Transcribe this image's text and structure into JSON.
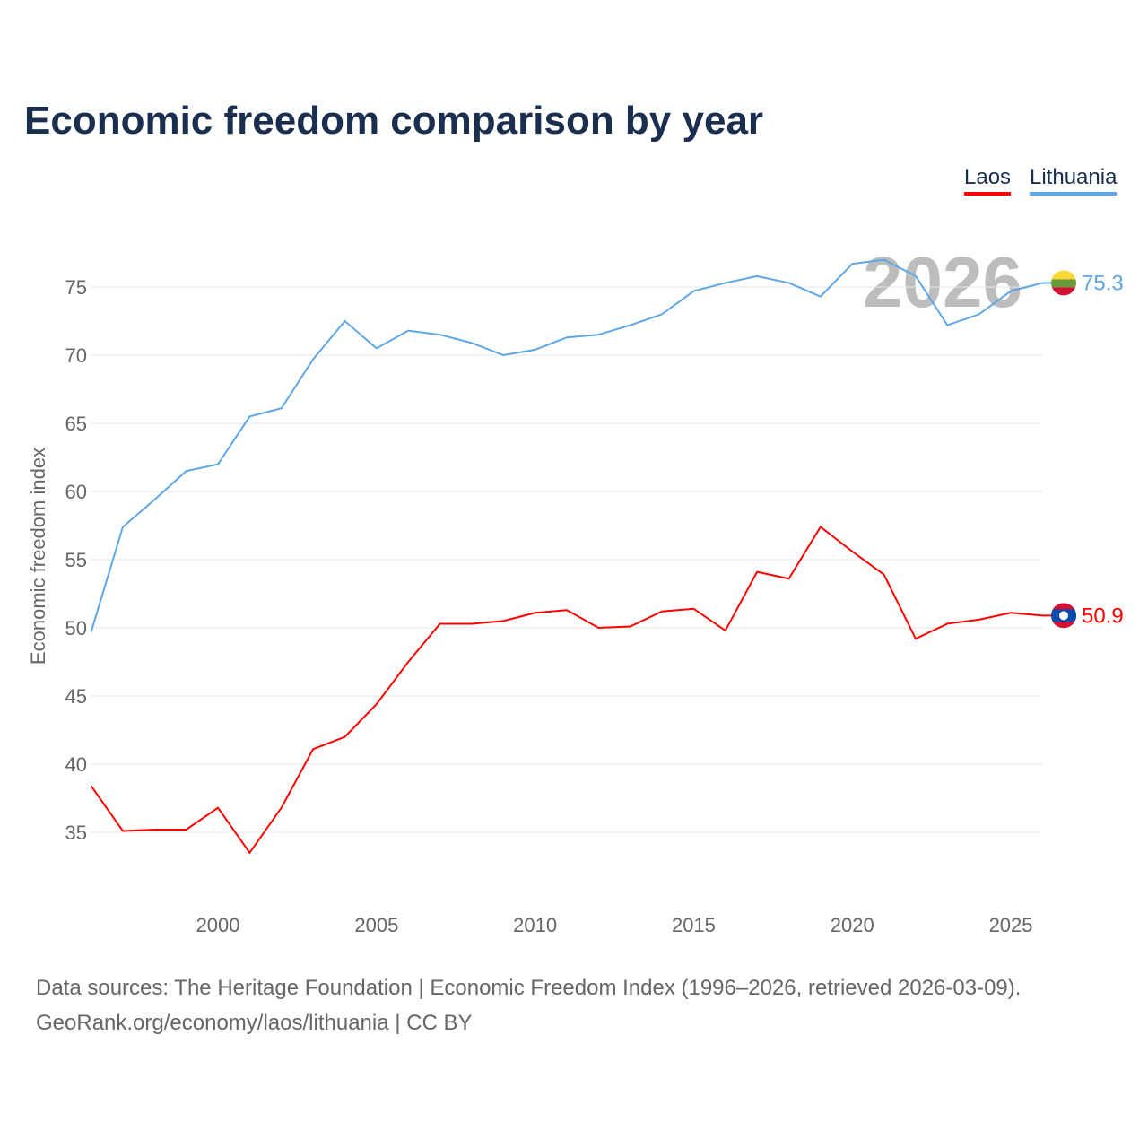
{
  "chart_data": {
    "type": "line",
    "title": "Economic freedom comparison by year",
    "ylabel": "Economic freedom index",
    "xlabel": "",
    "x": [
      1996,
      1997,
      1998,
      1999,
      2000,
      2001,
      2002,
      2003,
      2004,
      2005,
      2006,
      2007,
      2008,
      2009,
      2010,
      2011,
      2012,
      2013,
      2014,
      2015,
      2016,
      2017,
      2018,
      2019,
      2020,
      2021,
      2022,
      2023,
      2024,
      2025,
      2026
    ],
    "series": [
      {
        "name": "Laos",
        "color": "#ff0000",
        "end_label": "50.9",
        "values": [
          38.4,
          35.1,
          35.2,
          35.2,
          36.8,
          33.5,
          36.8,
          41.1,
          42.0,
          44.4,
          47.5,
          50.3,
          50.3,
          50.5,
          51.1,
          51.3,
          50.0,
          50.1,
          51.2,
          51.4,
          49.8,
          54.1,
          53.6,
          57.4,
          55.6,
          53.9,
          49.2,
          50.3,
          50.6,
          51.1,
          50.9
        ]
      },
      {
        "name": "Lithuania",
        "color": "#5ea6e8",
        "end_label": "75.3",
        "values": [
          49.7,
          57.4,
          59.4,
          61.5,
          62.0,
          65.5,
          66.1,
          69.7,
          72.5,
          70.5,
          71.8,
          71.5,
          70.9,
          70.0,
          70.4,
          71.3,
          71.5,
          72.2,
          73.0,
          74.7,
          75.3,
          75.8,
          75.3,
          74.3,
          76.7,
          77.0,
          75.8,
          72.2,
          73.0,
          74.7,
          75.3
        ]
      }
    ],
    "yticks": [
      35,
      40,
      45,
      50,
      55,
      60,
      65,
      70,
      75
    ],
    "xticks": [
      2000,
      2005,
      2010,
      2015,
      2020,
      2025
    ],
    "ylim": [
      30,
      80
    ],
    "xlim": [
      1996,
      2026
    ],
    "year_label": "2026",
    "legend_position": "top-right",
    "grid": true
  },
  "sources": {
    "line1": "Data sources: The Heritage Foundation | Economic Freedom Index (1996–2026, retrieved 2026-03-09).",
    "line2": "GeoRank.org/economy/laos/lithuania | CC BY"
  }
}
